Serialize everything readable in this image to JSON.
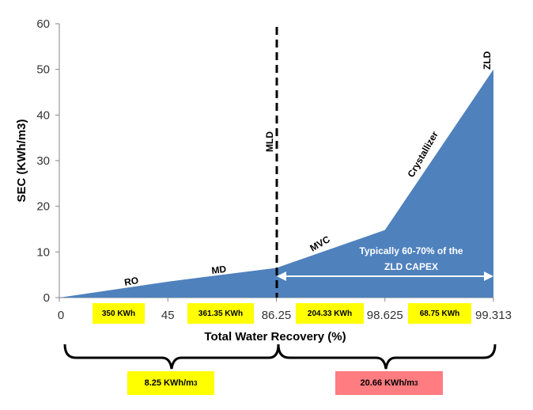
{
  "chart_data": {
    "type": "area",
    "x_categories": [
      "0",
      "45",
      "86.25",
      "98.625",
      "99.313"
    ],
    "series": [
      {
        "x_index": [
          0,
          1,
          2,
          3,
          4
        ],
        "values": [
          0,
          3.5,
          6.5,
          14.8,
          50
        ]
      }
    ],
    "xlabel": "Total Water Recovery (%)",
    "ylabel": "SEC (KWh/m3)",
    "ylim": [
      0,
      60
    ],
    "yticks": [
      "0",
      "10",
      "20",
      "30",
      "40",
      "50",
      "60"
    ],
    "grid": false,
    "colors": {
      "area": "#4f81bd",
      "axis": "#868686"
    },
    "annotations": {
      "ro": "RO",
      "md": "MD",
      "mvc": "MVC",
      "crystallizer": "Crystallizer",
      "zld": "ZLD",
      "mld": "MLD",
      "capex_line1": "Typically 60-70% of the",
      "capex_line2": "ZLD CAPEX"
    },
    "energy_boxes": [
      "350 KWh",
      "361.35 KWh",
      "204.33 KWh",
      "68.75 KWh"
    ],
    "totals": [
      {
        "value": "8.25 KWh/m",
        "exp": "3",
        "color": "#ffff00"
      },
      {
        "value": "20.66 KWh/m",
        "exp": "3",
        "color": "#ff7c80"
      }
    ]
  }
}
